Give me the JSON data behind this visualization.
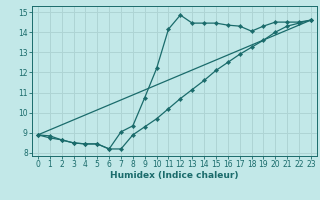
{
  "title": "",
  "xlabel": "Humidex (Indice chaleur)",
  "bg_color": "#c2e8e8",
  "grid_color": "#aed4d4",
  "line_color": "#1a6b6b",
  "xlim": [
    -0.5,
    23.5
  ],
  "ylim": [
    7.85,
    15.3
  ],
  "xticks": [
    0,
    1,
    2,
    3,
    4,
    5,
    6,
    7,
    8,
    9,
    10,
    11,
    12,
    13,
    14,
    15,
    16,
    17,
    18,
    19,
    20,
    21,
    22,
    23
  ],
  "yticks": [
    8,
    9,
    10,
    11,
    12,
    13,
    14,
    15
  ],
  "line1_x": [
    0,
    1,
    2,
    3,
    4,
    5,
    6,
    7,
    8,
    9,
    10,
    11,
    12,
    13,
    14,
    15,
    16,
    17,
    18,
    19,
    20,
    21,
    22,
    23
  ],
  "line1_y": [
    8.9,
    8.75,
    8.65,
    8.5,
    8.45,
    8.45,
    8.2,
    9.05,
    9.35,
    10.75,
    12.2,
    14.15,
    14.85,
    14.45,
    14.45,
    14.45,
    14.35,
    14.3,
    14.05,
    14.3,
    14.5,
    14.5,
    14.5,
    14.6
  ],
  "line2_x": [
    0,
    1,
    2,
    3,
    4,
    5,
    6,
    7,
    8,
    9,
    10,
    11,
    12,
    13,
    14,
    15,
    16,
    17,
    18,
    19,
    20,
    21,
    22,
    23
  ],
  "line2_y": [
    8.9,
    8.85,
    8.65,
    8.5,
    8.45,
    8.45,
    8.2,
    8.2,
    8.9,
    9.3,
    9.7,
    10.2,
    10.7,
    11.15,
    11.6,
    12.1,
    12.5,
    12.9,
    13.25,
    13.6,
    14.0,
    14.3,
    14.45,
    14.6
  ],
  "line3_x": [
    0,
    23
  ],
  "line3_y": [
    8.9,
    14.6
  ],
  "tick_fontsize": 5.5,
  "xlabel_fontsize": 6.5,
  "marker_size": 2.2,
  "line_width": 0.9
}
